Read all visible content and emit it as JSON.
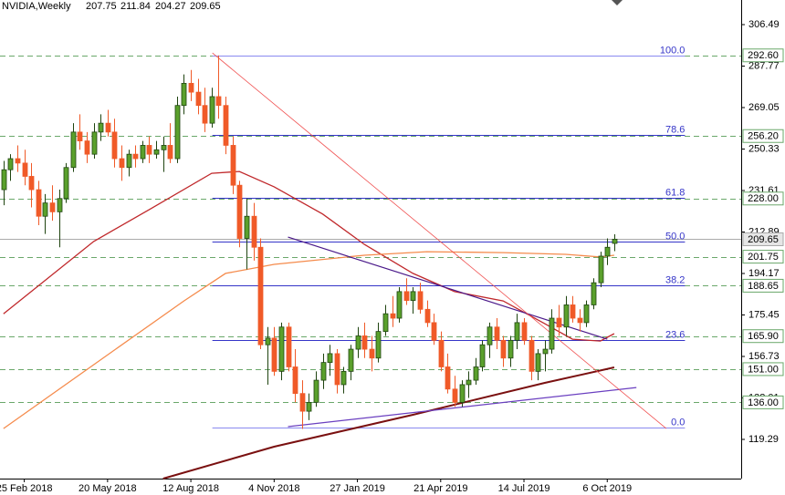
{
  "chart_data": {
    "type": "candlestick",
    "title": "NVIDIA,Weekly",
    "up_color": "#5aa02c",
    "up_stroke": "#1f4410",
    "down_color": "#f05a28",
    "xlim": [
      -0.5,
      106.3
    ],
    "ylim": [
      101.6,
      317.6
    ],
    "yticks": [
      306.49,
      287.77,
      269.05,
      250.33,
      231.61,
      212.89,
      194.17,
      175.45,
      156.73,
      138.01,
      119.29
    ],
    "categories": [
      null,
      null,
      null,
      "25 Feb 2018",
      null,
      null,
      null,
      null,
      null,
      null,
      null,
      null,
      null,
      null,
      null,
      "20 May 2018",
      null,
      null,
      null,
      null,
      null,
      null,
      null,
      null,
      null,
      null,
      null,
      "12 Aug 2018",
      null,
      null,
      null,
      null,
      null,
      null,
      null,
      null,
      null,
      null,
      null,
      "4 Nov 2018",
      null,
      null,
      null,
      null,
      null,
      null,
      null,
      null,
      null,
      null,
      null,
      "27 Jan 2019",
      null,
      null,
      null,
      null,
      null,
      null,
      null,
      null,
      null,
      null,
      null,
      "21 Apr 2019",
      null,
      null,
      null,
      null,
      null,
      null,
      null,
      null,
      null,
      null,
      null,
      "14 Jul 2019",
      null,
      null,
      null,
      null,
      null,
      null,
      null,
      null,
      null,
      null,
      null,
      "6 Oct 2019",
      null
    ],
    "ohlc": [
      [
        232,
        245,
        225,
        241
      ],
      [
        241,
        248,
        236,
        246
      ],
      [
        246,
        252,
        240,
        244
      ],
      [
        244,
        250,
        234,
        238
      ],
      [
        238,
        244,
        224,
        232
      ],
      [
        232,
        236,
        216,
        220
      ],
      [
        220,
        230,
        212,
        226
      ],
      [
        226,
        234,
        218,
        222
      ],
      [
        222,
        232,
        206,
        228
      ],
      [
        228,
        244,
        226,
        242
      ],
      [
        242,
        262,
        240,
        258
      ],
      [
        258,
        266,
        250,
        254
      ],
      [
        254,
        258,
        244,
        248
      ],
      [
        248,
        262,
        246,
        258
      ],
      [
        258,
        266,
        254,
        262
      ],
      [
        262,
        268,
        256,
        258
      ],
      [
        258,
        264,
        242,
        246
      ],
      [
        246,
        252,
        236,
        242
      ],
      [
        242,
        250,
        238,
        248
      ],
      [
        248,
        252,
        242,
        246
      ],
      [
        246,
        254,
        244,
        252
      ],
      [
        252,
        256,
        244,
        248
      ],
      [
        248,
        254,
        246,
        250
      ],
      [
        250,
        256,
        240,
        252
      ],
      [
        252,
        262,
        244,
        246
      ],
      [
        246,
        274,
        244,
        270
      ],
      [
        270,
        284,
        266,
        280
      ],
      [
        280,
        286,
        272,
        276
      ],
      [
        276,
        282,
        266,
        270
      ],
      [
        270,
        278,
        258,
        262
      ],
      [
        262,
        278,
        260,
        274
      ],
      [
        274,
        292.6,
        264,
        270
      ],
      [
        270,
        274,
        248,
        252
      ],
      [
        252,
        256,
        230,
        234
      ],
      [
        234,
        236,
        206,
        210
      ],
      [
        210,
        228,
        196,
        220
      ],
      [
        220,
        226,
        200,
        206
      ],
      [
        206,
        210,
        160,
        162
      ],
      [
        162,
        170,
        144,
        165
      ],
      [
        165,
        170,
        148,
        150
      ],
      [
        150,
        172,
        146,
        170
      ],
      [
        170,
        172,
        150,
        152
      ],
      [
        152,
        160,
        136,
        140
      ],
      [
        140,
        146,
        124,
        132
      ],
      [
        132,
        140,
        128,
        136
      ],
      [
        136,
        150,
        134,
        146
      ],
      [
        146,
        158,
        142,
        154
      ],
      [
        154,
        162,
        148,
        158
      ],
      [
        158,
        160,
        140,
        144
      ],
      [
        144,
        152,
        140,
        150
      ],
      [
        150,
        162,
        146,
        160
      ],
      [
        160,
        170,
        156,
        166
      ],
      [
        166,
        172,
        156,
        160
      ],
      [
        160,
        166,
        150,
        156
      ],
      [
        156,
        172,
        154,
        168
      ],
      [
        168,
        180,
        166,
        176
      ],
      [
        176,
        184,
        170,
        174
      ],
      [
        174,
        188,
        172,
        186
      ],
      [
        186,
        192,
        180,
        182
      ],
      [
        182,
        188,
        176,
        186
      ],
      [
        186,
        190,
        176,
        178
      ],
      [
        178,
        182,
        170,
        172
      ],
      [
        172,
        176,
        162,
        164
      ],
      [
        164,
        168,
        150,
        152
      ],
      [
        152,
        158,
        140,
        142
      ],
      [
        142,
        148,
        134,
        136
      ],
      [
        136,
        146,
        134,
        144
      ],
      [
        144,
        150,
        138,
        146
      ],
      [
        146,
        156,
        144,
        152
      ],
      [
        152,
        164,
        150,
        162
      ],
      [
        162,
        172,
        156,
        170
      ],
      [
        170,
        174,
        160,
        164
      ],
      [
        164,
        166,
        152,
        156
      ],
      [
        156,
        166,
        152,
        164
      ],
      [
        164,
        176,
        160,
        172
      ],
      [
        172,
        174,
        162,
        164
      ],
      [
        164,
        166,
        146,
        150
      ],
      [
        150,
        160,
        146,
        158
      ],
      [
        158,
        164,
        150,
        160
      ],
      [
        160,
        178,
        158,
        174
      ],
      [
        174,
        180,
        166,
        170
      ],
      [
        170,
        184,
        166,
        180
      ],
      [
        180,
        184,
        172,
        174
      ],
      [
        174,
        178,
        168,
        172
      ],
      [
        172,
        182,
        170,
        180
      ],
      [
        180,
        192,
        178,
        190
      ],
      [
        190,
        204,
        188,
        202
      ],
      [
        202,
        210,
        198,
        206
      ],
      [
        207.75,
        211.84,
        204.27,
        209.65
      ]
    ],
    "lines": [
      {
        "color": "#c0282b",
        "width": 1.3,
        "x": [
          0,
          13,
          21,
          30,
          34,
          39,
          46,
          52,
          59,
          65,
          72,
          78,
          82,
          86,
          88
        ],
        "values": [
          176,
          208.6,
          223,
          239.4,
          240.2,
          233.3,
          221,
          207.3,
          194.2,
          186,
          181.8,
          171.5,
          164.5,
          163.7,
          167
        ]
      },
      {
        "color": "#f58b4c",
        "width": 1.3,
        "x": [
          0,
          13,
          26,
          32,
          39,
          52,
          61,
          72,
          81,
          86,
          88
        ],
        "values": [
          124.2,
          153,
          181.8,
          194.2,
          198.3,
          202.4,
          204,
          203.6,
          202.8,
          201.6,
          202.4
        ]
      },
      {
        "color": "#7a1010",
        "width": 2,
        "x": [
          23,
          39,
          59,
          78,
          88
        ],
        "values": [
          101.6,
          116,
          130.4,
          144.8,
          151.8
        ]
      },
      {
        "color": "#4b1a8a",
        "width": 1.2,
        "x": [
          41,
          87
        ],
        "values": [
          210.6,
          164.5
        ]
      },
      {
        "color": "#6a3fc0",
        "width": 1.2,
        "x": [
          41,
          91.2
        ],
        "values": [
          125.05,
          142.7
        ]
      },
      {
        "color": "#f05050",
        "width": 0.8,
        "x": [
          30.1,
          95.5
        ],
        "values": [
          293.7,
          124.2
        ]
      }
    ],
    "fib": {
      "color": "#3535c8",
      "edge_color": "#8a8af0",
      "high": 292.6,
      "low": 124.6,
      "x": [
        30.1,
        98.2
      ],
      "levels": [
        {
          "value": 100,
          "label": "100.0"
        },
        78.6,
        61.8,
        {
          "value": 50,
          "label": "50.0"
        },
        38.2,
        23.6,
        {
          "value": 0,
          "label": "0.0"
        }
      ]
    },
    "level_color": "#6aa86a",
    "levels": [
      {
        "value": 292.6,
        "label": "292.60"
      },
      {
        "value": 256.2,
        "label": "256.20"
      },
      {
        "value": 228,
        "label": "228.00"
      },
      201.75,
      188.65,
      {
        "value": 165.9,
        "label": "165.90"
      },
      {
        "value": 151,
        "label": "151.00"
      },
      {
        "value": 136,
        "label": "136.00"
      }
    ]
  }
}
